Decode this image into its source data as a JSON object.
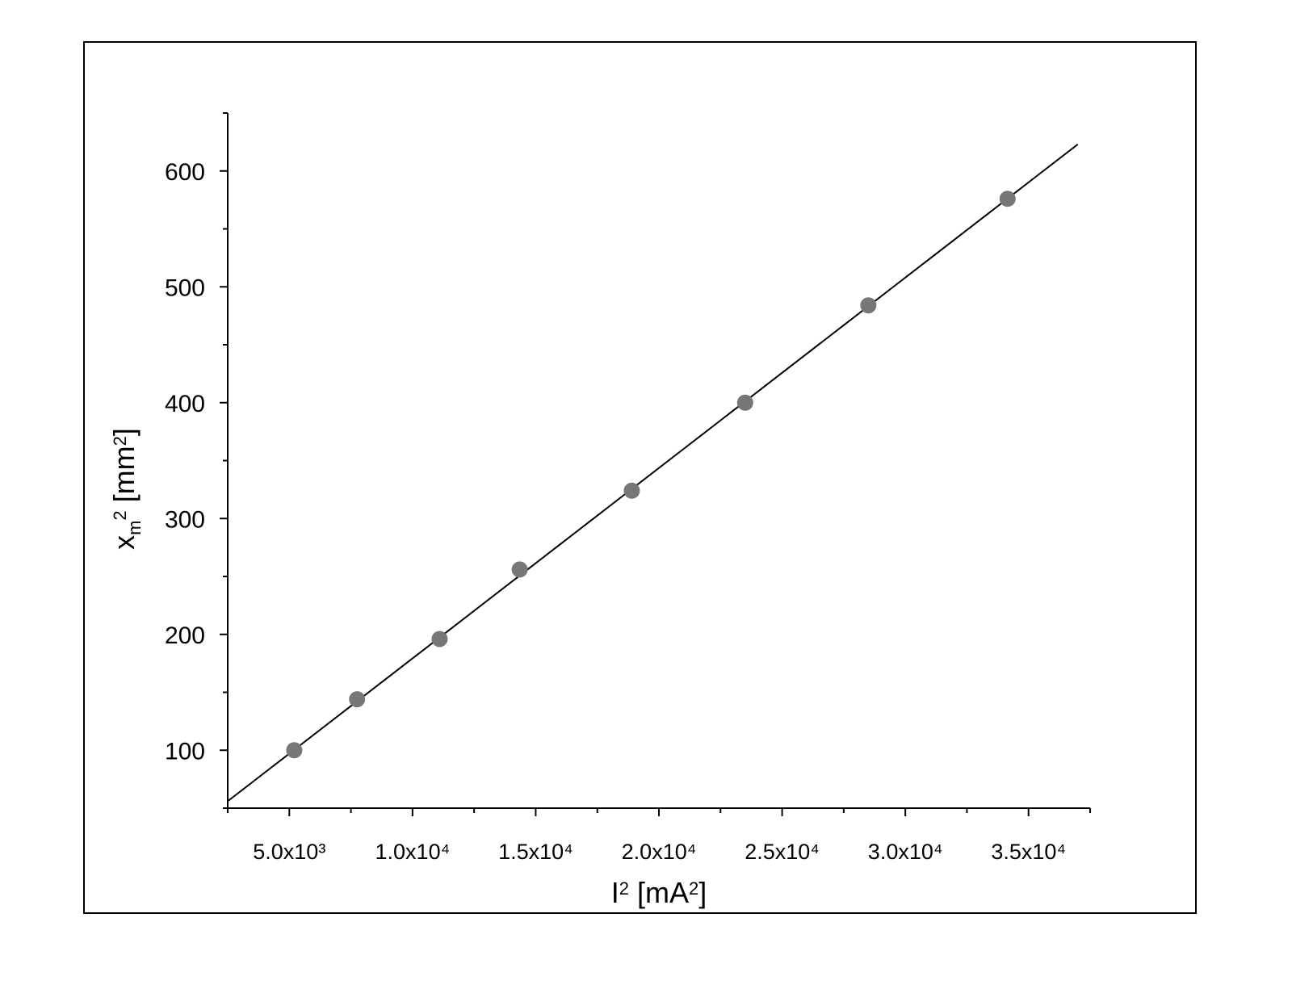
{
  "chart_data": {
    "type": "scatter",
    "xlabel": [
      {
        "text": "I"
      },
      {
        "text": "2",
        "shift": "super"
      },
      {
        "text": " [mA"
      },
      {
        "text": "2",
        "shift": "super"
      },
      {
        "text": "]"
      }
    ],
    "ylabel": [
      {
        "text": "x"
      },
      {
        "text": "m",
        "shift": "sub"
      },
      {
        "text": "2",
        "shift": "super"
      },
      {
        "text": " [mm"
      },
      {
        "text": "2",
        "shift": "super"
      },
      {
        "text": "]"
      }
    ],
    "series": [
      {
        "color": "#777777",
        "x": [
          5200,
          7750,
          11100,
          14350,
          18900,
          23500,
          28500,
          34150
        ],
        "values": [
          100,
          144,
          196,
          256,
          324,
          400,
          484,
          576
        ]
      }
    ],
    "fit_line": {
      "color": "#000000",
      "x": [
        2500,
        37000
      ],
      "values": [
        56,
        623
      ]
    },
    "xlim": [
      2500,
      37500
    ],
    "ylim": [
      50,
      650
    ],
    "xticks": [
      {
        "value": 5000,
        "label": "5.0x10³"
      },
      {
        "value": 10000,
        "label": "1.0x10⁴"
      },
      {
        "value": 15000,
        "label": "1.5x10⁴"
      },
      {
        "value": 20000,
        "label": "2.0x10⁴"
      },
      {
        "value": 25000,
        "label": "2.5x10⁴"
      },
      {
        "value": 30000,
        "label": "3.0x10⁴"
      },
      {
        "value": 35000,
        "label": "3.5x10⁴"
      }
    ],
    "yticks": [
      100,
      200,
      300,
      400,
      500,
      600
    ],
    "minor_ticks": true,
    "grid": false
  }
}
